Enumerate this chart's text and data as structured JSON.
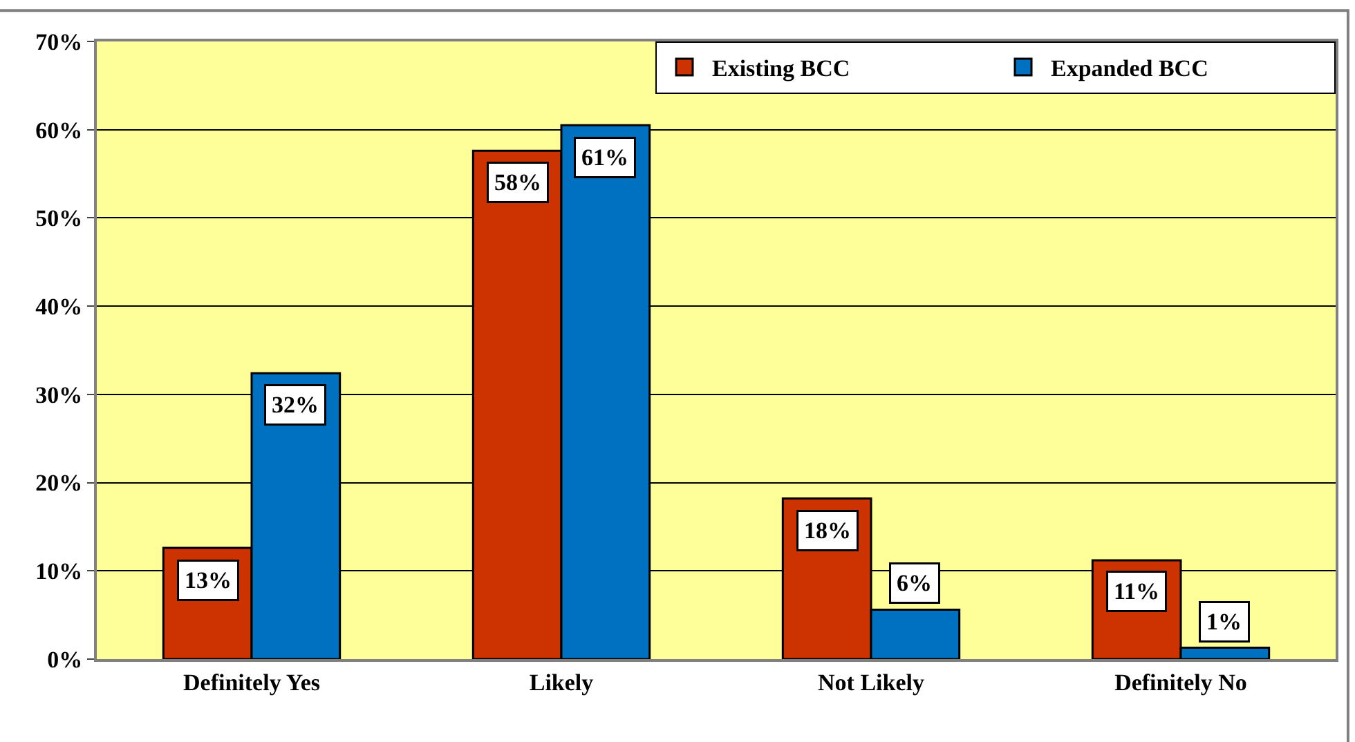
{
  "chart_data": {
    "type": "bar",
    "categories": [
      "Definitely Yes",
      "Likely",
      "Not Likely",
      "Definitely No"
    ],
    "series": [
      {
        "name": "Existing BCC",
        "color": "#cc3300",
        "values": [
          12.6,
          57.6,
          18.2,
          11.2
        ],
        "value_labels": [
          "13%",
          "58%",
          "18%",
          "11%"
        ]
      },
      {
        "name": "Expanded BCC",
        "color": "#0070c0",
        "values": [
          32.4,
          60.5,
          5.6,
          1.3
        ],
        "value_labels": [
          "32%",
          "61%",
          "6%",
          "1%"
        ]
      }
    ],
    "ylim": [
      0,
      70
    ],
    "yticks": [
      {
        "value": 0,
        "label": "0%"
      },
      {
        "value": 10,
        "label": "10%"
      },
      {
        "value": 20,
        "label": "20%"
      },
      {
        "value": 30,
        "label": "30%"
      },
      {
        "value": 40,
        "label": "40%"
      },
      {
        "value": 50,
        "label": "50%"
      },
      {
        "value": 60,
        "label": "60%"
      },
      {
        "value": 70,
        "label": "70%"
      }
    ],
    "grid": "y",
    "legend": "top right"
  }
}
